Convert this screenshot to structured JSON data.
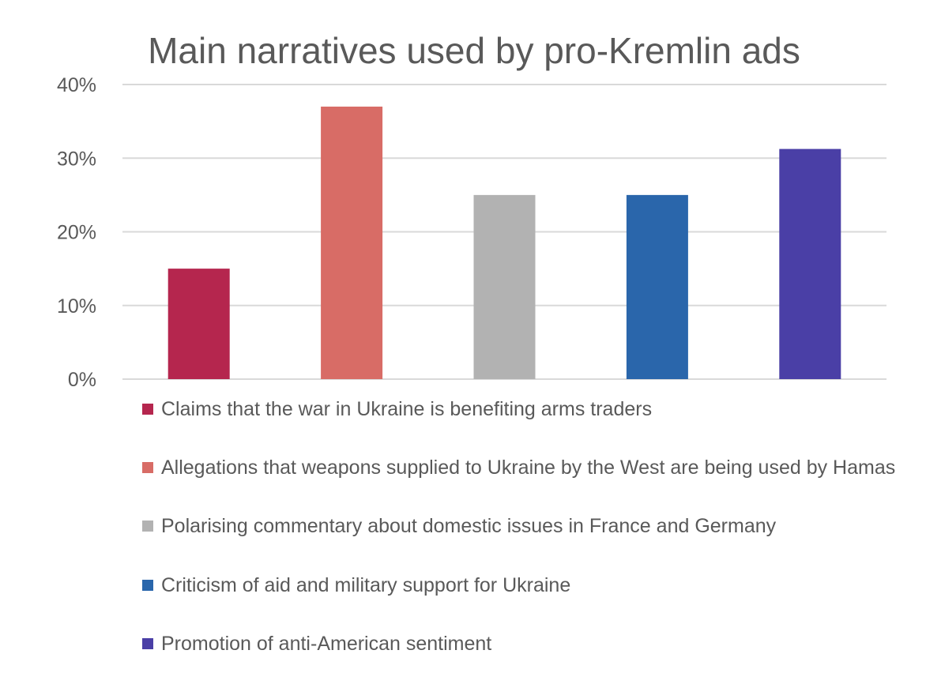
{
  "chart_data": {
    "type": "bar",
    "title": "Main narratives used by pro-Kremlin ads",
    "xlabel": "",
    "ylabel": "",
    "ylim": [
      0,
      40
    ],
    "yticks": [
      "0%",
      "10%",
      "20%",
      "30%",
      "40%"
    ],
    "grid": true,
    "legend_position": "bottom",
    "categories": [
      "Claims that the war in Ukraine is benefiting arms traders",
      "Allegations that weapons supplied to Ukraine by the West are being used by Hamas",
      "Polarising commentary about domestic issues in France and Germany",
      "Criticism of aid and military support for Ukraine",
      "Promotion of anti-American sentiment"
    ],
    "values": [
      15,
      37,
      25,
      25,
      31.25
    ],
    "colors": [
      "#b5264e",
      "#d86c66",
      "#b2b2b2",
      "#2a66ab",
      "#4a3fa6"
    ]
  }
}
